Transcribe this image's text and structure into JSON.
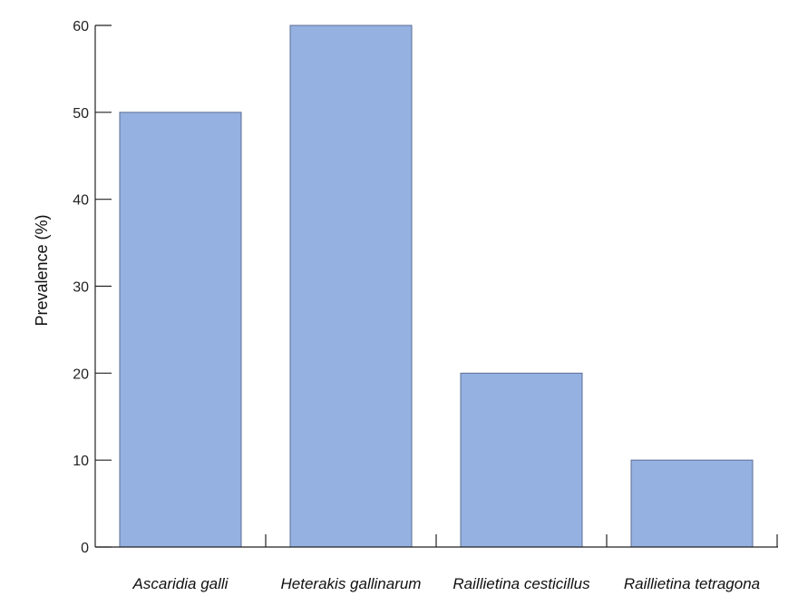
{
  "chart_data": {
    "type": "bar",
    "categories": [
      "Ascaridia galli",
      "Heterakis gallinarum",
      "Raillietina cesticillus",
      "Raillietina tetragona"
    ],
    "values": [
      50,
      60,
      20,
      10
    ],
    "ylabel": "Prevalence (%)",
    "xlabel": "",
    "ylim": [
      0,
      60
    ],
    "yticks": [
      0,
      10,
      20,
      30,
      40,
      50,
      60
    ],
    "grid": false,
    "bar_color": "#95b1e1",
    "bar_edge_color": "#5c6e95"
  }
}
